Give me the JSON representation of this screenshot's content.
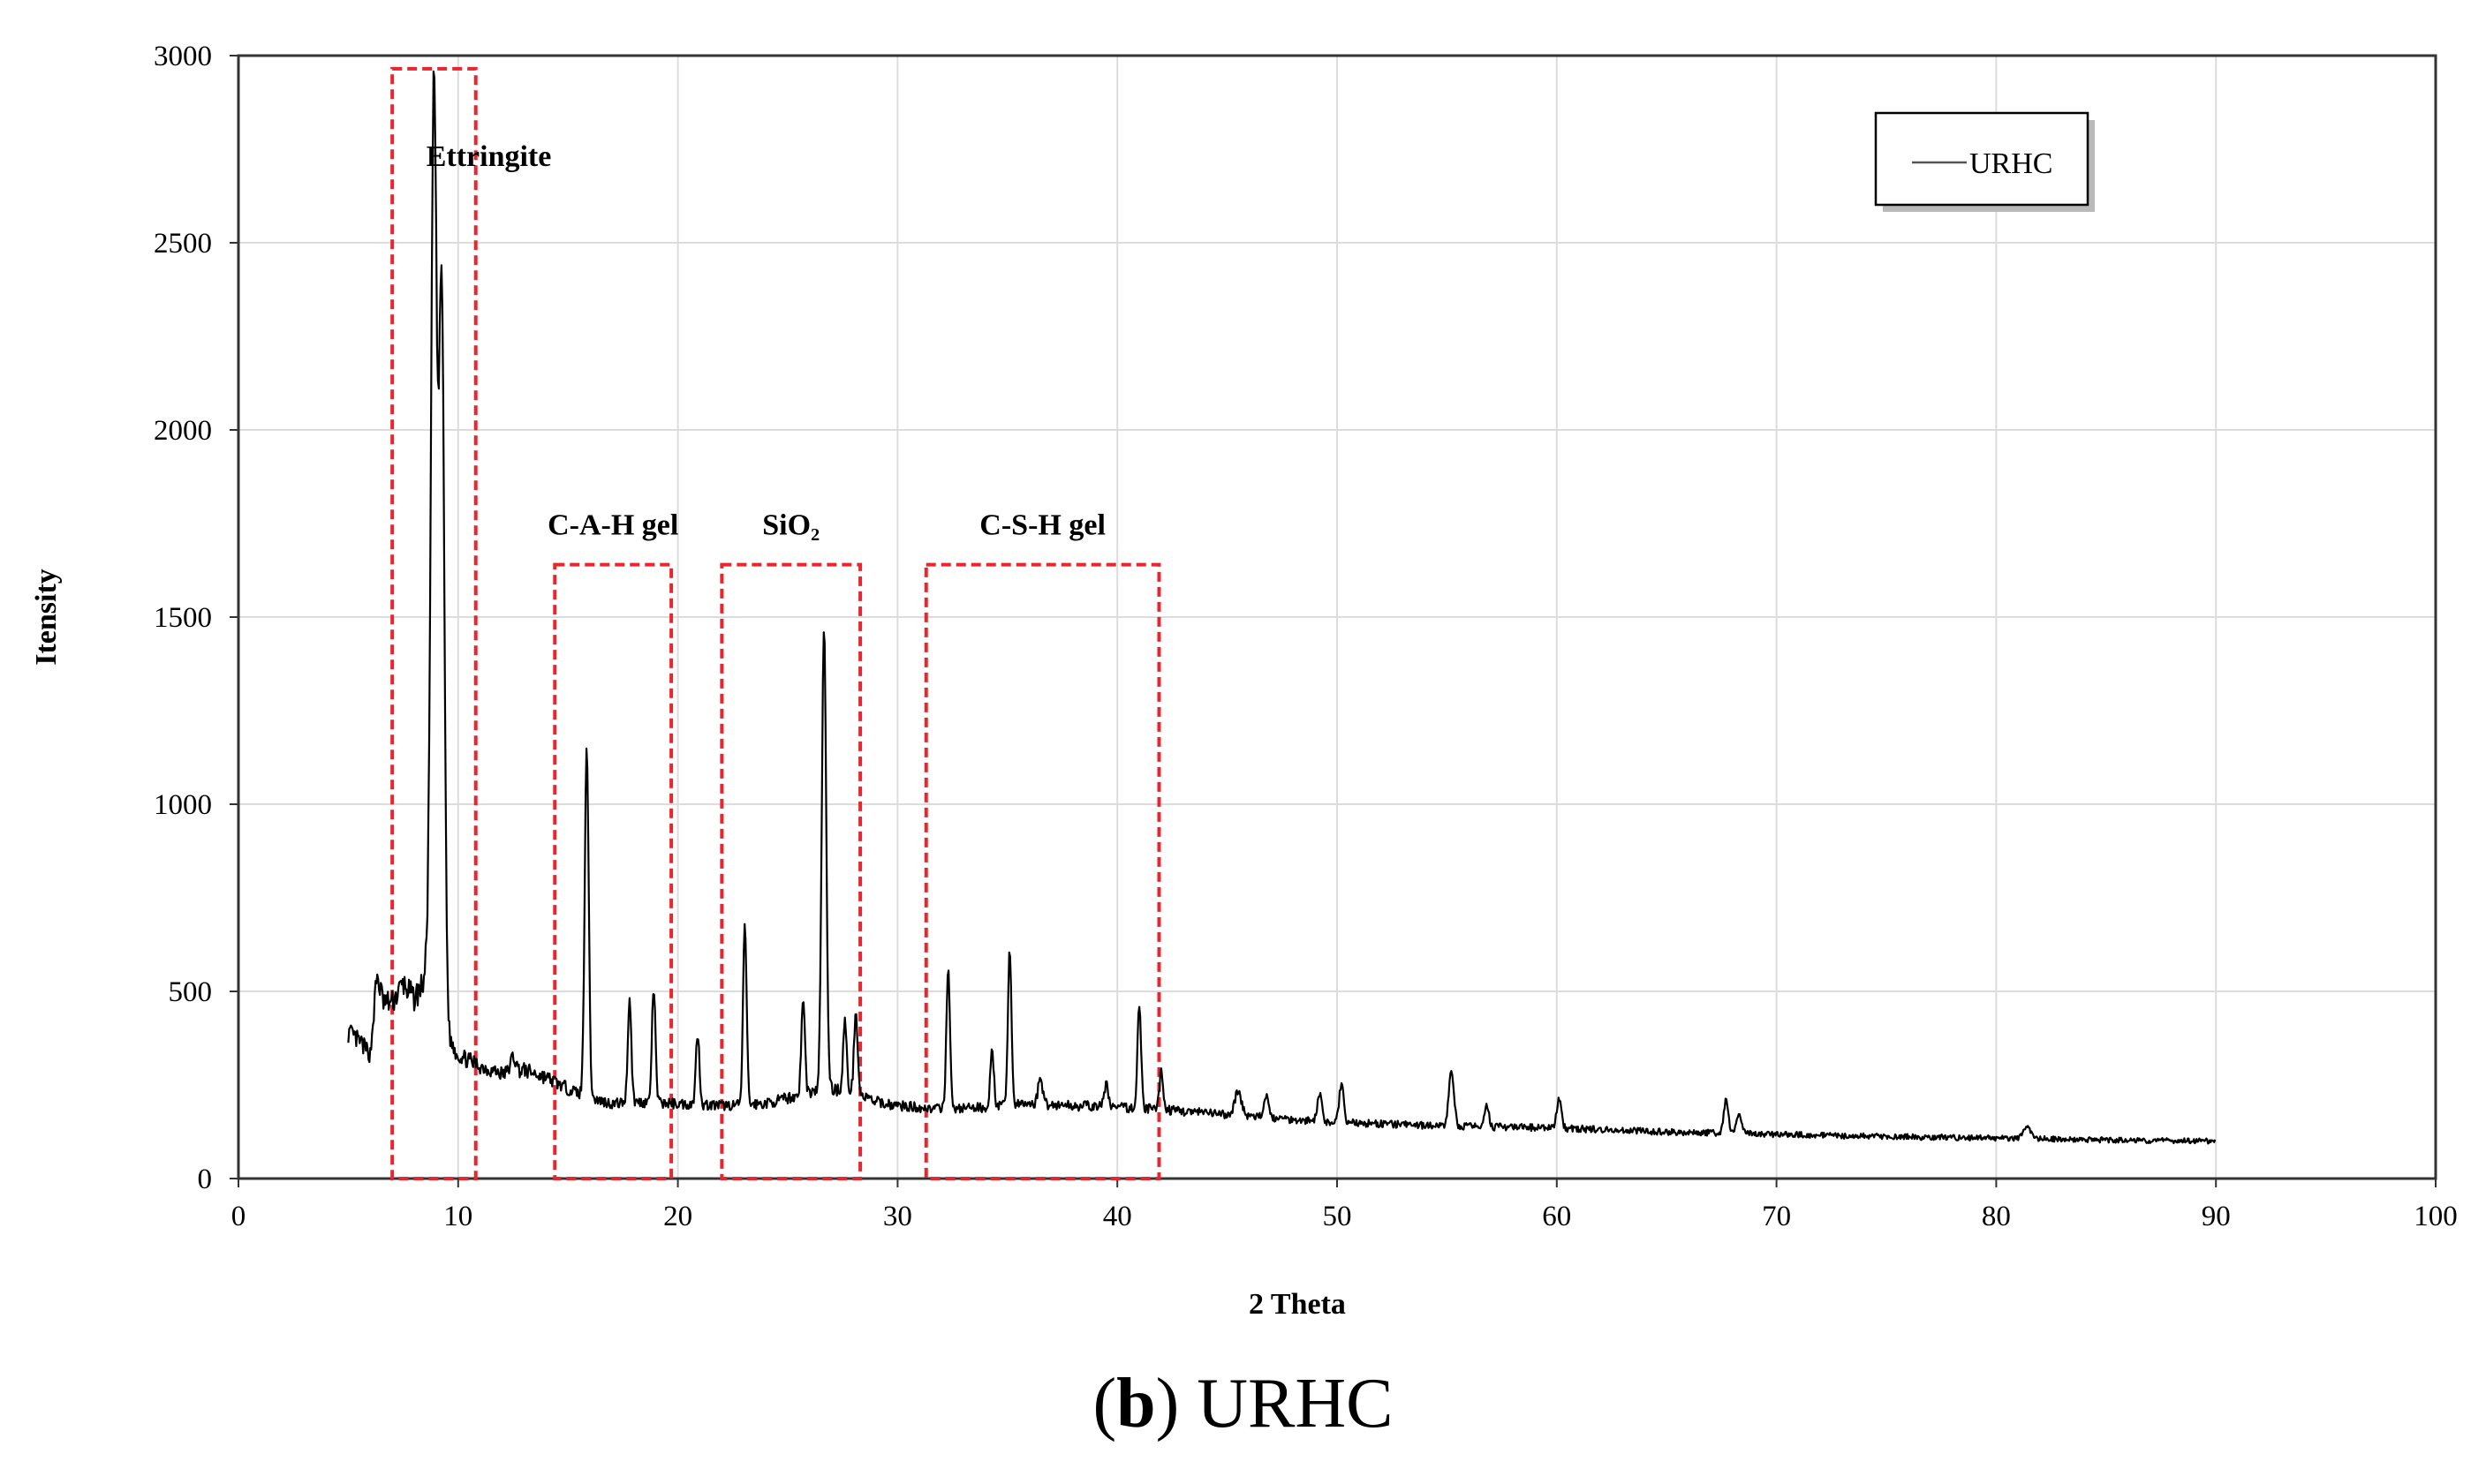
{
  "chart_data": {
    "type": "line",
    "title": "",
    "xlabel": "2 Theta",
    "ylabel": "Itensity",
    "xlim": [
      0,
      100
    ],
    "ylim": [
      0,
      3000
    ],
    "xticks": [
      0,
      10,
      20,
      30,
      40,
      50,
      60,
      70,
      80,
      90,
      100
    ],
    "yticks": [
      0,
      500,
      1000,
      1500,
      2000,
      2500,
      3000
    ],
    "grid": true,
    "legend": {
      "position": "top-right",
      "entries": [
        "URHC"
      ]
    },
    "series": [
      {
        "name": "URHC",
        "color": "#000000",
        "background_points": [
          [
            5.0,
            390
          ],
          [
            5.6,
            360
          ],
          [
            6.0,
            330
          ],
          [
            6.3,
            520
          ],
          [
            6.6,
            470
          ],
          [
            7.0,
            470
          ],
          [
            7.5,
            520
          ],
          [
            8.0,
            480
          ],
          [
            8.4,
            520
          ],
          [
            8.7,
            600
          ],
          [
            9.5,
            380
          ],
          [
            10.0,
            330
          ],
          [
            11.0,
            300
          ],
          [
            12.0,
            280
          ],
          [
            13.0,
            290
          ],
          [
            14.0,
            270
          ],
          [
            15.0,
            240
          ],
          [
            16.0,
            215
          ],
          [
            17.0,
            200
          ],
          [
            18.0,
            205
          ],
          [
            20.0,
            200
          ],
          [
            22.0,
            195
          ],
          [
            24.0,
            200
          ],
          [
            25.0,
            215
          ],
          [
            26.0,
            230
          ],
          [
            27.0,
            240
          ],
          [
            28.0,
            230
          ],
          [
            29.0,
            205
          ],
          [
            30.0,
            195
          ],
          [
            32.0,
            185
          ],
          [
            34.0,
            190
          ],
          [
            36.0,
            200
          ],
          [
            38.0,
            195
          ],
          [
            40.0,
            190
          ],
          [
            42.0,
            185
          ],
          [
            45.0,
            170
          ],
          [
            50.0,
            150
          ],
          [
            55.0,
            140
          ],
          [
            60.0,
            135
          ],
          [
            65.0,
            125
          ],
          [
            70.0,
            118
          ],
          [
            75.0,
            112
          ],
          [
            80.0,
            108
          ],
          [
            85.0,
            103
          ],
          [
            90.0,
            100
          ]
        ],
        "peaks": [
          {
            "x": 6.3,
            "y": 540,
            "w": 0.15
          },
          {
            "x": 8.9,
            "y": 2930,
            "w": 0.13
          },
          {
            "x": 9.25,
            "y": 2370,
            "w": 0.12
          },
          {
            "x": 12.5,
            "y": 325,
            "w": 0.12
          },
          {
            "x": 15.85,
            "y": 1160,
            "w": 0.09
          },
          {
            "x": 17.8,
            "y": 480,
            "w": 0.08
          },
          {
            "x": 18.9,
            "y": 510,
            "w": 0.08
          },
          {
            "x": 20.9,
            "y": 390,
            "w": 0.08
          },
          {
            "x": 23.05,
            "y": 680,
            "w": 0.08
          },
          {
            "x": 25.7,
            "y": 480,
            "w": 0.08
          },
          {
            "x": 26.65,
            "y": 1470,
            "w": 0.1
          },
          {
            "x": 27.6,
            "y": 420,
            "w": 0.08
          },
          {
            "x": 28.1,
            "y": 450,
            "w": 0.08
          },
          {
            "x": 32.3,
            "y": 565,
            "w": 0.08
          },
          {
            "x": 34.3,
            "y": 340,
            "w": 0.08
          },
          {
            "x": 35.1,
            "y": 615,
            "w": 0.08
          },
          {
            "x": 36.5,
            "y": 270,
            "w": 0.1
          },
          {
            "x": 39.5,
            "y": 250,
            "w": 0.1
          },
          {
            "x": 41.0,
            "y": 470,
            "w": 0.08
          },
          {
            "x": 42.0,
            "y": 290,
            "w": 0.08
          },
          {
            "x": 45.5,
            "y": 235,
            "w": 0.15
          },
          {
            "x": 46.8,
            "y": 225,
            "w": 0.1
          },
          {
            "x": 49.2,
            "y": 225,
            "w": 0.1
          },
          {
            "x": 50.2,
            "y": 255,
            "w": 0.1
          },
          {
            "x": 55.2,
            "y": 280,
            "w": 0.12
          },
          {
            "x": 56.8,
            "y": 200,
            "w": 0.1
          },
          {
            "x": 60.1,
            "y": 215,
            "w": 0.1
          },
          {
            "x": 67.7,
            "y": 210,
            "w": 0.1
          },
          {
            "x": 68.3,
            "y": 180,
            "w": 0.1
          },
          {
            "x": 81.4,
            "y": 140,
            "w": 0.15
          }
        ]
      }
    ],
    "annotations": [
      {
        "label": "Ettringite",
        "x_range": [
          7.0,
          10.8
        ],
        "y_top": 2965,
        "label_x": 8.55,
        "label_y": 2705,
        "anchor": "start"
      },
      {
        "label": "C-A-H gel",
        "x_range": [
          14.4,
          19.7
        ],
        "y_top": 1640,
        "label_x": 17.05,
        "label_y": 1720,
        "anchor": "middle"
      },
      {
        "label": "SiO₂",
        "x_range": [
          22.0,
          28.3
        ],
        "y_top": 1640,
        "label_x": 25.15,
        "label_y": 1720,
        "anchor": "middle"
      },
      {
        "label": "C-S-H gel",
        "x_range": [
          31.3,
          41.9
        ],
        "y_top": 1640,
        "label_x": 36.6,
        "label_y": 1720,
        "anchor": "middle"
      }
    ],
    "annotation_color": "#e8262e"
  },
  "caption": {
    "prefix_open": "(",
    "letter": "b",
    "suffix": ") URHC"
  }
}
